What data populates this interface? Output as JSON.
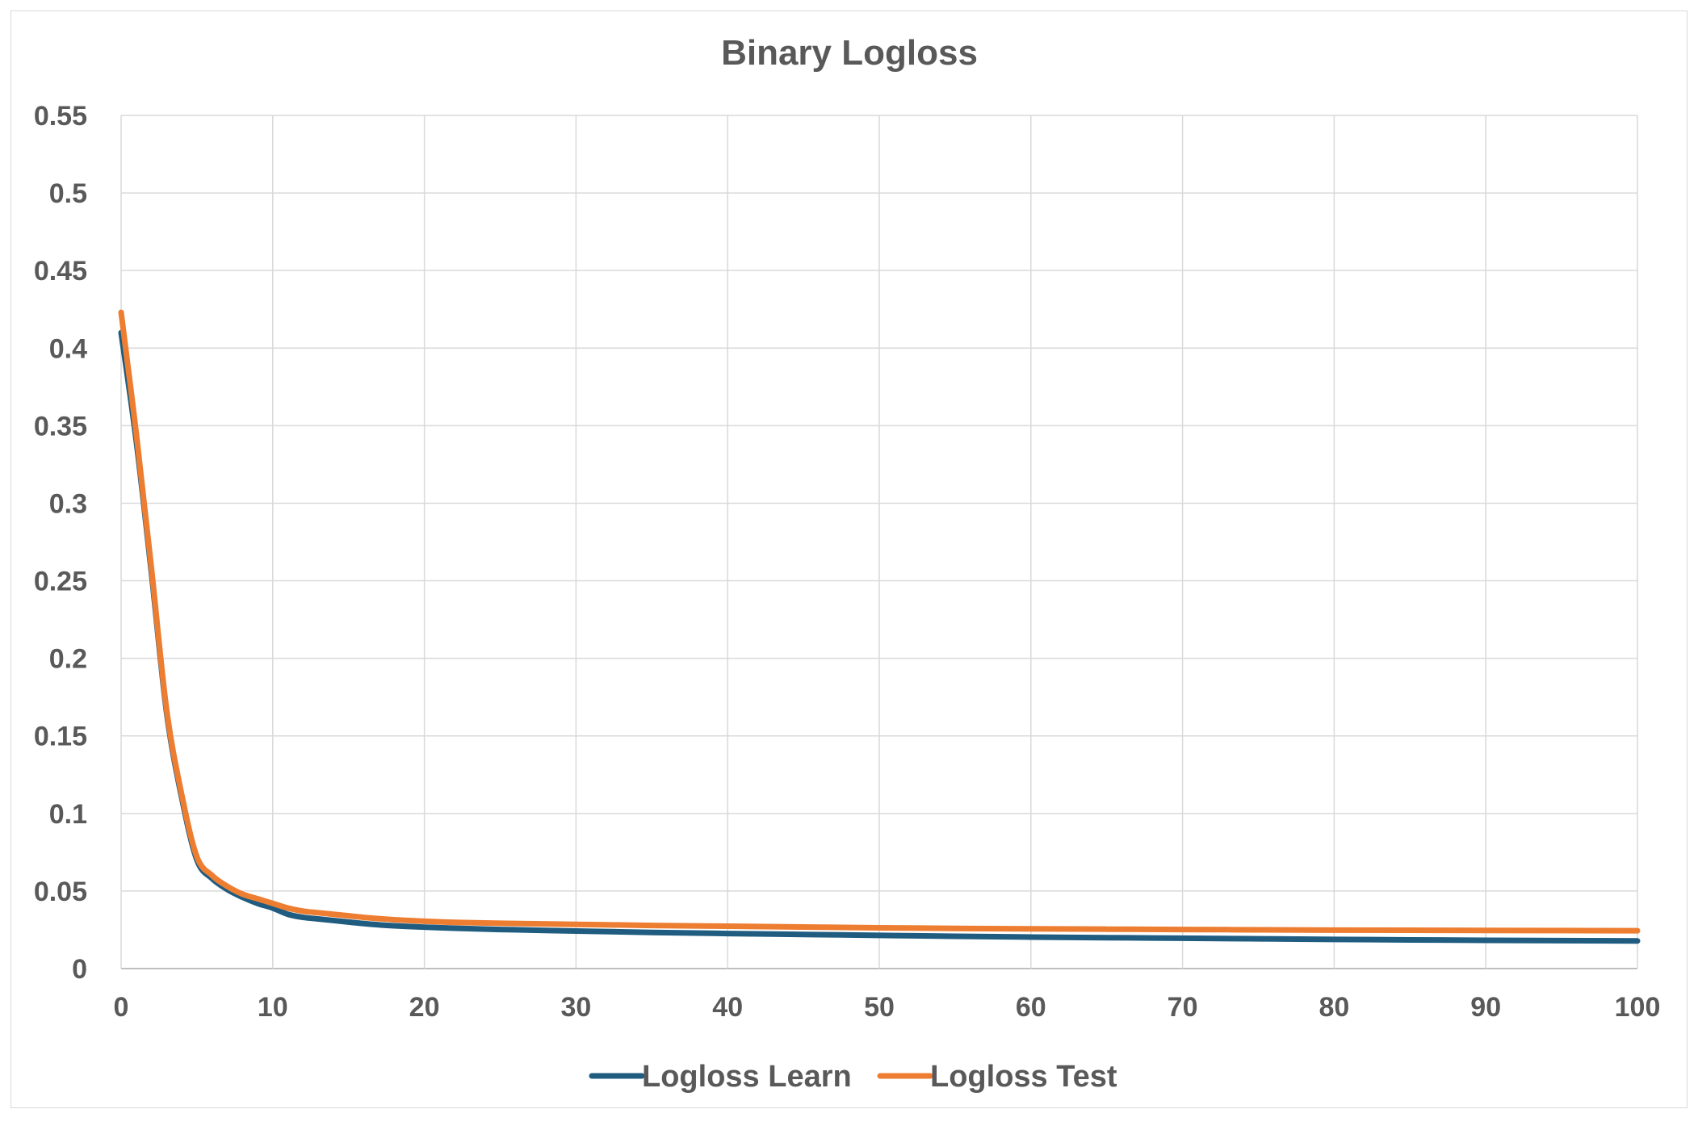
{
  "chart_data": {
    "type": "line",
    "title": "Binary Logloss",
    "xlabel": "",
    "ylabel": "",
    "xlim": [
      0,
      100
    ],
    "ylim": [
      0,
      0.55
    ],
    "x_ticks": [
      0,
      10,
      20,
      30,
      40,
      50,
      60,
      70,
      80,
      90,
      100
    ],
    "y_ticks": [
      "0",
      "0.05",
      "0.1",
      "0.15",
      "0.2",
      "0.25",
      "0.3",
      "0.35",
      "0.4",
      "0.45",
      "0.5",
      "0.55"
    ],
    "grid": true,
    "legend_position": "bottom",
    "series": [
      {
        "name": "Logloss Learn",
        "color": "#1f5c80",
        "x": [
          0,
          1,
          2,
          3,
          4,
          5,
          6,
          7,
          8,
          9,
          10,
          11,
          12,
          13,
          14,
          15,
          16,
          17,
          18,
          20,
          22,
          25,
          30,
          35,
          40,
          45,
          50,
          55,
          60,
          65,
          70,
          75,
          80,
          85,
          90,
          95,
          100
        ],
        "y": [
          0.41,
          0.34,
          0.255,
          0.165,
          0.11,
          0.07,
          0.058,
          0.051,
          0.046,
          0.042,
          0.039,
          0.035,
          0.033,
          0.032,
          0.031,
          0.03,
          0.029,
          0.0282,
          0.0276,
          0.0267,
          0.026,
          0.0252,
          0.0242,
          0.0233,
          0.0226,
          0.022,
          0.0214,
          0.0208,
          0.0203,
          0.0199,
          0.0196,
          0.0192,
          0.0188,
          0.0185,
          0.0182,
          0.018,
          0.0178
        ]
      },
      {
        "name": "Logloss Test",
        "color": "#ed7d31",
        "x": [
          0,
          1,
          2,
          3,
          4,
          5,
          6,
          7,
          8,
          9,
          10,
          11,
          12,
          13,
          14,
          15,
          16,
          17,
          18,
          20,
          22,
          25,
          30,
          35,
          40,
          45,
          50,
          55,
          60,
          65,
          70,
          75,
          80,
          85,
          90,
          95,
          100
        ],
        "y": [
          0.423,
          0.345,
          0.258,
          0.167,
          0.112,
          0.072,
          0.06,
          0.053,
          0.048,
          0.045,
          0.042,
          0.039,
          0.037,
          0.036,
          0.035,
          0.034,
          0.033,
          0.0322,
          0.0315,
          0.0305,
          0.0298,
          0.0292,
          0.0285,
          0.0278,
          0.0273,
          0.0268,
          0.0263,
          0.0259,
          0.0256,
          0.0254,
          0.0252,
          0.025,
          0.0248,
          0.0247,
          0.0246,
          0.0245,
          0.0244
        ]
      }
    ]
  }
}
